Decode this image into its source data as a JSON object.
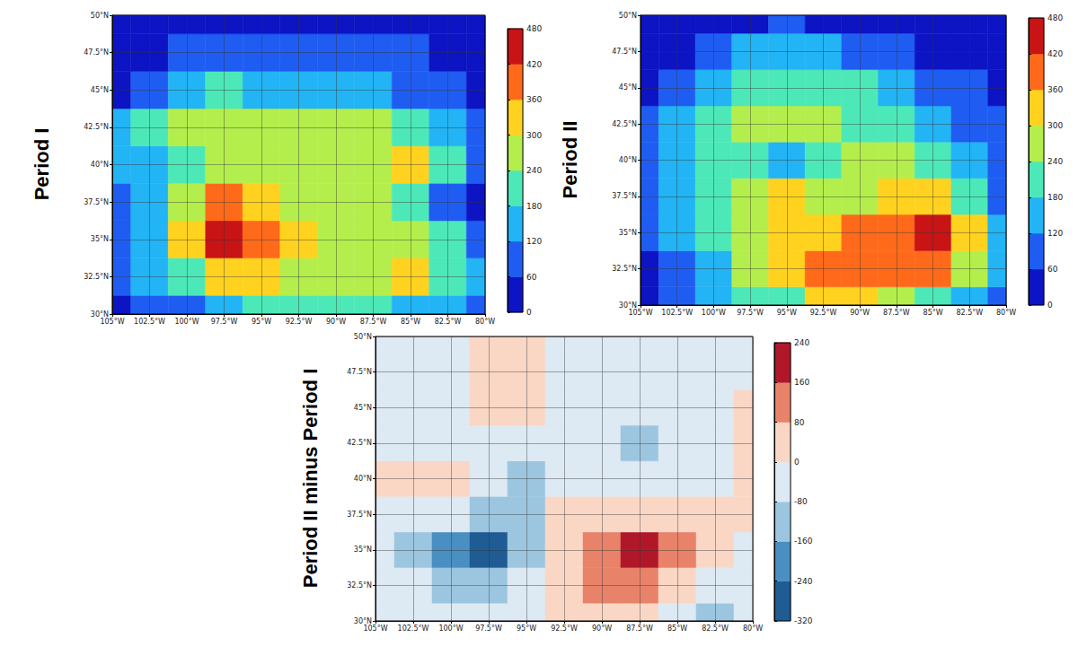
{
  "chart_data": [
    {
      "type": "heatmap",
      "title": "Period I",
      "grid": true,
      "xlim": [
        -105,
        -80
      ],
      "xticks": [
        {
          "value": -105,
          "label": "105°W"
        },
        {
          "value": -102.5,
          "label": "102.5°W"
        },
        {
          "value": -100,
          "label": "100°W"
        },
        {
          "value": -97.5,
          "label": "97.5°W"
        },
        {
          "value": -95,
          "label": "95°W"
        },
        {
          "value": -92.5,
          "label": "92.5°W"
        },
        {
          "value": -90,
          "label": "90°W"
        },
        {
          "value": -87.5,
          "label": "87.5°W"
        },
        {
          "value": -85,
          "label": "85°W"
        },
        {
          "value": -82.5,
          "label": "82.5°W"
        },
        {
          "value": -80,
          "label": "80°W"
        }
      ],
      "ylim": [
        30,
        50
      ],
      "yticks": [
        {
          "value": 30,
          "label": "30°N"
        },
        {
          "value": 32.5,
          "label": "32.5°N"
        },
        {
          "value": 35,
          "label": "35°N"
        },
        {
          "value": 37.5,
          "label": "37.5°N"
        },
        {
          "value": 40,
          "label": "40°N"
        },
        {
          "value": 42.5,
          "label": "42.5°N"
        },
        {
          "value": 45,
          "label": "45°N"
        },
        {
          "value": 47.5,
          "label": "47.5°N"
        },
        {
          "value": 50,
          "label": "50°N"
        }
      ],
      "lon": [
        -105,
        -102.5,
        -100,
        -97.5,
        -95,
        -92.5,
        -90,
        -87.5,
        -85,
        -82.5,
        -80
      ],
      "lat": [
        30,
        32.5,
        35,
        37.5,
        40,
        42.5,
        45,
        47.5,
        50
      ],
      "values": [
        [
          30,
          60,
          110,
          170,
          200,
          190,
          200,
          190,
          170,
          130,
          60
        ],
        [
          60,
          130,
          230,
          320,
          310,
          270,
          260,
          250,
          310,
          200,
          130
        ],
        [
          90,
          170,
          330,
          450,
          380,
          300,
          260,
          250,
          250,
          180,
          100
        ],
        [
          110,
          170,
          250,
          380,
          320,
          270,
          260,
          260,
          230,
          110,
          40
        ],
        [
          150,
          160,
          200,
          260,
          270,
          270,
          270,
          270,
          320,
          200,
          100
        ],
        [
          140,
          190,
          250,
          270,
          270,
          270,
          260,
          280,
          230,
          150,
          80
        ],
        [
          40,
          90,
          150,
          200,
          170,
          150,
          150,
          150,
          110,
          80,
          40
        ],
        [
          20,
          30,
          90,
          90,
          100,
          100,
          90,
          90,
          80,
          40,
          20
        ],
        [
          20,
          20,
          20,
          20,
          20,
          20,
          20,
          20,
          20,
          20,
          20
        ]
      ],
      "colorbar": {
        "range": [
          0,
          480
        ],
        "ticks": [
          0,
          60,
          120,
          180,
          240,
          300,
          360,
          420,
          480
        ],
        "colors": [
          "#0c14c4",
          "#1f5df2",
          "#22b4f4",
          "#4de8b8",
          "#b4ee4c",
          "#ffd21f",
          "#ff6a1a",
          "#c81414"
        ]
      }
    },
    {
      "type": "heatmap",
      "title": "Period II",
      "grid": true,
      "xlim": [
        -105,
        -80
      ],
      "xticks": [
        {
          "value": -105,
          "label": "105°W"
        },
        {
          "value": -102.5,
          "label": "102.5°W"
        },
        {
          "value": -100,
          "label": "100°W"
        },
        {
          "value": -97.5,
          "label": "97.5°W"
        },
        {
          "value": -95,
          "label": "95°W"
        },
        {
          "value": -92.5,
          "label": "92.5°W"
        },
        {
          "value": -90,
          "label": "90°W"
        },
        {
          "value": -87.5,
          "label": "87.5°W"
        },
        {
          "value": -85,
          "label": "85°W"
        },
        {
          "value": -82.5,
          "label": "82.5°W"
        },
        {
          "value": -80,
          "label": "80°W"
        }
      ],
      "ylim": [
        30,
        50
      ],
      "yticks": [
        {
          "value": 30,
          "label": "30°N"
        },
        {
          "value": 32.5,
          "label": "32.5°N"
        },
        {
          "value": 35,
          "label": "35°N"
        },
        {
          "value": 37.5,
          "label": "37.5°N"
        },
        {
          "value": 40,
          "label": "40°N"
        },
        {
          "value": 42.5,
          "label": "42.5°N"
        },
        {
          "value": 45,
          "label": "45°N"
        },
        {
          "value": 47.5,
          "label": "47.5°N"
        },
        {
          "value": 50,
          "label": "50°N"
        }
      ],
      "lon": [
        -105,
        -102.5,
        -100,
        -97.5,
        -95,
        -92.5,
        -90,
        -87.5,
        -85,
        -82.5,
        -80
      ],
      "lat": [
        30,
        32.5,
        35,
        37.5,
        40,
        42.5,
        45,
        47.5,
        50
      ],
      "values": [
        [
          20,
          60,
          120,
          180,
          220,
          300,
          300,
          260,
          200,
          140,
          60
        ],
        [
          40,
          100,
          170,
          240,
          300,
          380,
          400,
          400,
          380,
          260,
          120
        ],
        [
          70,
          140,
          230,
          280,
          320,
          350,
          370,
          400,
          450,
          300,
          140
        ],
        [
          80,
          150,
          220,
          260,
          300,
          290,
          280,
          320,
          310,
          200,
          100
        ],
        [
          100,
          160,
          230,
          200,
          150,
          230,
          240,
          240,
          230,
          140,
          60
        ],
        [
          80,
          150,
          220,
          250,
          260,
          250,
          220,
          200,
          170,
          100,
          60
        ],
        [
          40,
          90,
          150,
          200,
          220,
          200,
          180,
          150,
          100,
          60,
          30
        ],
        [
          20,
          40,
          90,
          130,
          150,
          130,
          100,
          90,
          40,
          20,
          20
        ],
        [
          20,
          20,
          20,
          30,
          80,
          40,
          20,
          20,
          20,
          20,
          20
        ]
      ],
      "colorbar": {
        "range": [
          0,
          480
        ],
        "ticks": [
          0,
          60,
          120,
          180,
          240,
          300,
          360,
          420,
          480
        ],
        "colors": [
          "#0c14c4",
          "#1f5df2",
          "#22b4f4",
          "#4de8b8",
          "#b4ee4c",
          "#ffd21f",
          "#ff6a1a",
          "#c81414"
        ]
      }
    },
    {
      "type": "heatmap",
      "title": "Period II minus Period I",
      "grid": true,
      "xlim": [
        -105,
        -80
      ],
      "xticks": [
        {
          "value": -105,
          "label": "105°W"
        },
        {
          "value": -102.5,
          "label": "102.5°W"
        },
        {
          "value": -100,
          "label": "100°W"
        },
        {
          "value": -97.5,
          "label": "97.5°W"
        },
        {
          "value": -95,
          "label": "95°W"
        },
        {
          "value": -92.5,
          "label": "92.5°W"
        },
        {
          "value": -90,
          "label": "90°W"
        },
        {
          "value": -87.5,
          "label": "87.5°W"
        },
        {
          "value": -85,
          "label": "85°W"
        },
        {
          "value": -82.5,
          "label": "82.5°W"
        },
        {
          "value": -80,
          "label": "80°W"
        }
      ],
      "ylim": [
        30,
        50
      ],
      "yticks": [
        {
          "value": 30,
          "label": "30°N"
        },
        {
          "value": 32.5,
          "label": "32.5°N"
        },
        {
          "value": 35,
          "label": "35°N"
        },
        {
          "value": 37.5,
          "label": "37.5°N"
        },
        {
          "value": 40,
          "label": "40°N"
        },
        {
          "value": 42.5,
          "label": "42.5°N"
        },
        {
          "value": 45,
          "label": "45°N"
        },
        {
          "value": 47.5,
          "label": "47.5°N"
        },
        {
          "value": 50,
          "label": "50°N"
        }
      ],
      "lon": [
        -105,
        -102.5,
        -100,
        -97.5,
        -95,
        -92.5,
        -90,
        -87.5,
        -85,
        -82.5,
        -80
      ],
      "lat": [
        30,
        32.5,
        35,
        37.5,
        40,
        42.5,
        45,
        47.5,
        50
      ],
      "values": [
        [
          -40,
          -40,
          -40,
          -40,
          -40,
          40,
          40,
          40,
          -40,
          -100,
          -40
        ],
        [
          -40,
          -40,
          -100,
          -100,
          -40,
          40,
          120,
          100,
          40,
          -40,
          -40
        ],
        [
          -40,
          -100,
          -180,
          -260,
          -100,
          40,
          120,
          200,
          120,
          40,
          -40
        ],
        [
          -40,
          -40,
          -40,
          -100,
          -100,
          40,
          40,
          40,
          40,
          40,
          40
        ],
        [
          40,
          40,
          40,
          -40,
          -100,
          -40,
          -40,
          -40,
          -40,
          -40,
          40
        ],
        [
          -40,
          -40,
          -40,
          -40,
          -40,
          -40,
          -40,
          -100,
          -40,
          -40,
          40
        ],
        [
          -40,
          -40,
          -40,
          40,
          40,
          -40,
          -40,
          -40,
          -40,
          -40,
          40
        ],
        [
          -40,
          -40,
          -40,
          40,
          40,
          -40,
          -40,
          -40,
          -40,
          -40,
          -40
        ],
        [
          -40,
          -40,
          -40,
          40,
          40,
          -40,
          -40,
          -40,
          -40,
          -40,
          -40
        ]
      ],
      "colorbar": {
        "range": [
          -320,
          240
        ],
        "ticks": [
          -320,
          -240,
          -160,
          -80,
          0,
          80,
          160,
          240
        ],
        "colors": [
          "#1f5c94",
          "#4a8fc2",
          "#9cc6e0",
          "#dde9f3",
          "#fad7c5",
          "#e8836a",
          "#b0182a"
        ]
      }
    }
  ]
}
